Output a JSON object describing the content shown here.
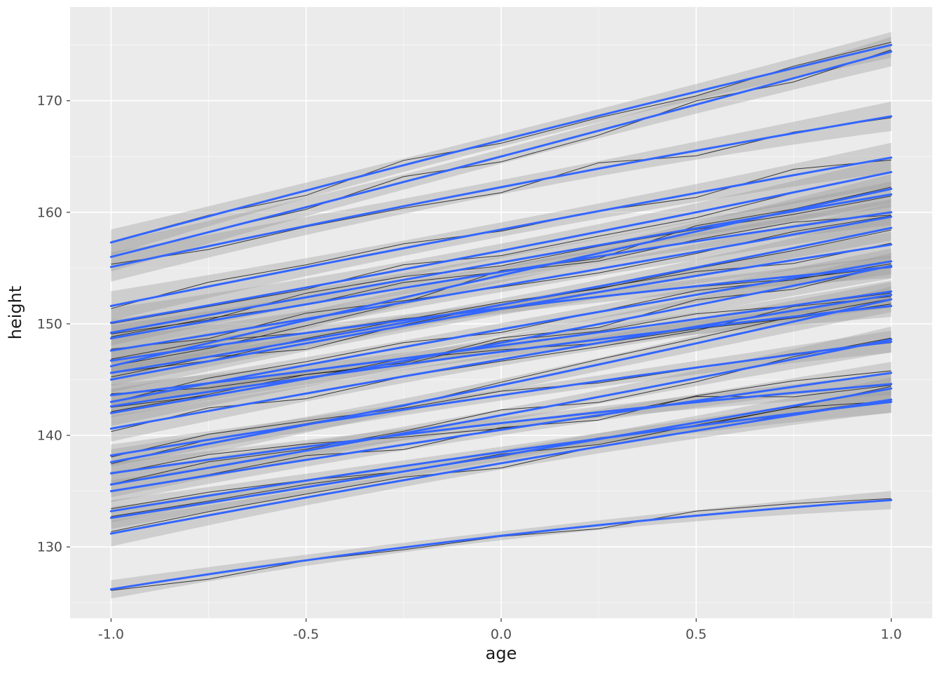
{
  "chart_data": {
    "type": "line",
    "title": "",
    "xlabel": "age",
    "ylabel": "height",
    "xlim": [
      -1.105,
      1.105
    ],
    "ylim": [
      123.6,
      178.4
    ],
    "x_ticks": [
      -1.0,
      -0.5,
      0.0,
      0.5,
      1.0
    ],
    "x_tick_labels": [
      "-1.0",
      "-0.5",
      "0.0",
      "0.5",
      "1.0"
    ],
    "y_ticks": [
      130,
      140,
      150,
      160,
      170
    ],
    "y_tick_labels": [
      "130",
      "140",
      "150",
      "160",
      "170"
    ],
    "x_minor": [
      -0.75,
      -0.25,
      0.25,
      0.75
    ],
    "y_minor": [
      125,
      135,
      145,
      155,
      165,
      175
    ],
    "grid": true,
    "legend": "none",
    "panel_bg": "#EBEBEB",
    "grid_major_color": "#FFFFFF",
    "grid_minor_color": "#F7F7F7",
    "smooth_color": "#3366FF",
    "ribbon_color": "#999999",
    "data_line_color": "#1A1A1A",
    "tick_label_color": "#4D4D4D",
    "axis_title_color": "#1A1A1A",
    "series_note": "per-subject growth curves: height at age=-1 (start) and age=+1 (end), smooth bow = mid-curve offset, se = ribbon half-width",
    "series": [
      {
        "id": 1,
        "start": 126.2,
        "end": 134.2,
        "bow": 0.8,
        "se": 0.5
      },
      {
        "id": 2,
        "start": 131.2,
        "end": 143.2,
        "bow": 0.3,
        "se": 0.7
      },
      {
        "id": 3,
        "start": 132.6,
        "end": 144.2,
        "bow": -0.2,
        "se": 0.6
      },
      {
        "id": 4,
        "start": 133.2,
        "end": 143.0,
        "bow": 0.4,
        "se": 0.6
      },
      {
        "id": 5,
        "start": 135.0,
        "end": 145.6,
        "bow": 0.2,
        "se": 0.6
      },
      {
        "id": 6,
        "start": 135.6,
        "end": 148.6,
        "bow": -0.3,
        "se": 0.7
      },
      {
        "id": 7,
        "start": 136.6,
        "end": 144.6,
        "bow": 0.5,
        "se": 0.6
      },
      {
        "id": 8,
        "start": 137.6,
        "end": 152.2,
        "bow": -0.4,
        "se": 0.7
      },
      {
        "id": 9,
        "start": 138.2,
        "end": 148.4,
        "bow": 0.3,
        "se": 0.6
      },
      {
        "id": 10,
        "start": 140.6,
        "end": 152.6,
        "bow": 0.2,
        "se": 0.7
      },
      {
        "id": 11,
        "start": 142.0,
        "end": 155.2,
        "bow": -0.3,
        "se": 0.7
      },
      {
        "id": 12,
        "start": 142.6,
        "end": 151.6,
        "bow": 0.4,
        "se": 0.6
      },
      {
        "id": 13,
        "start": 143.0,
        "end": 155.6,
        "bow": 0.2,
        "se": 0.7
      },
      {
        "id": 14,
        "start": 143.6,
        "end": 152.9,
        "bow": -0.2,
        "se": 0.6
      },
      {
        "id": 15,
        "start": 145.0,
        "end": 157.1,
        "bow": 0.3,
        "se": 0.7
      },
      {
        "id": 16,
        "start": 145.6,
        "end": 158.6,
        "bow": -0.4,
        "se": 0.7
      },
      {
        "id": 17,
        "start": 146.2,
        "end": 162.1,
        "bow": 0.2,
        "se": 0.8
      },
      {
        "id": 18,
        "start": 146.7,
        "end": 155.1,
        "bow": 0.5,
        "se": 0.6
      },
      {
        "id": 19,
        "start": 147.6,
        "end": 159.6,
        "bow": -0.2,
        "se": 0.7
      },
      {
        "id": 20,
        "start": 148.7,
        "end": 160.0,
        "bow": 0.3,
        "se": 0.7
      },
      {
        "id": 21,
        "start": 149.2,
        "end": 161.6,
        "bow": 0.1,
        "se": 0.7
      },
      {
        "id": 22,
        "start": 150.1,
        "end": 163.6,
        "bow": -0.3,
        "se": 0.8
      },
      {
        "id": 23,
        "start": 151.6,
        "end": 164.9,
        "bow": 0.2,
        "se": 0.8
      },
      {
        "id": 24,
        "start": 155.1,
        "end": 168.6,
        "bow": 0.4,
        "se": 0.8
      },
      {
        "id": 25,
        "start": 156.0,
        "end": 174.4,
        "bow": -0.2,
        "se": 0.8
      },
      {
        "id": 26,
        "start": 157.3,
        "end": 175.0,
        "bow": 0.3,
        "se": 0.7
      }
    ]
  }
}
